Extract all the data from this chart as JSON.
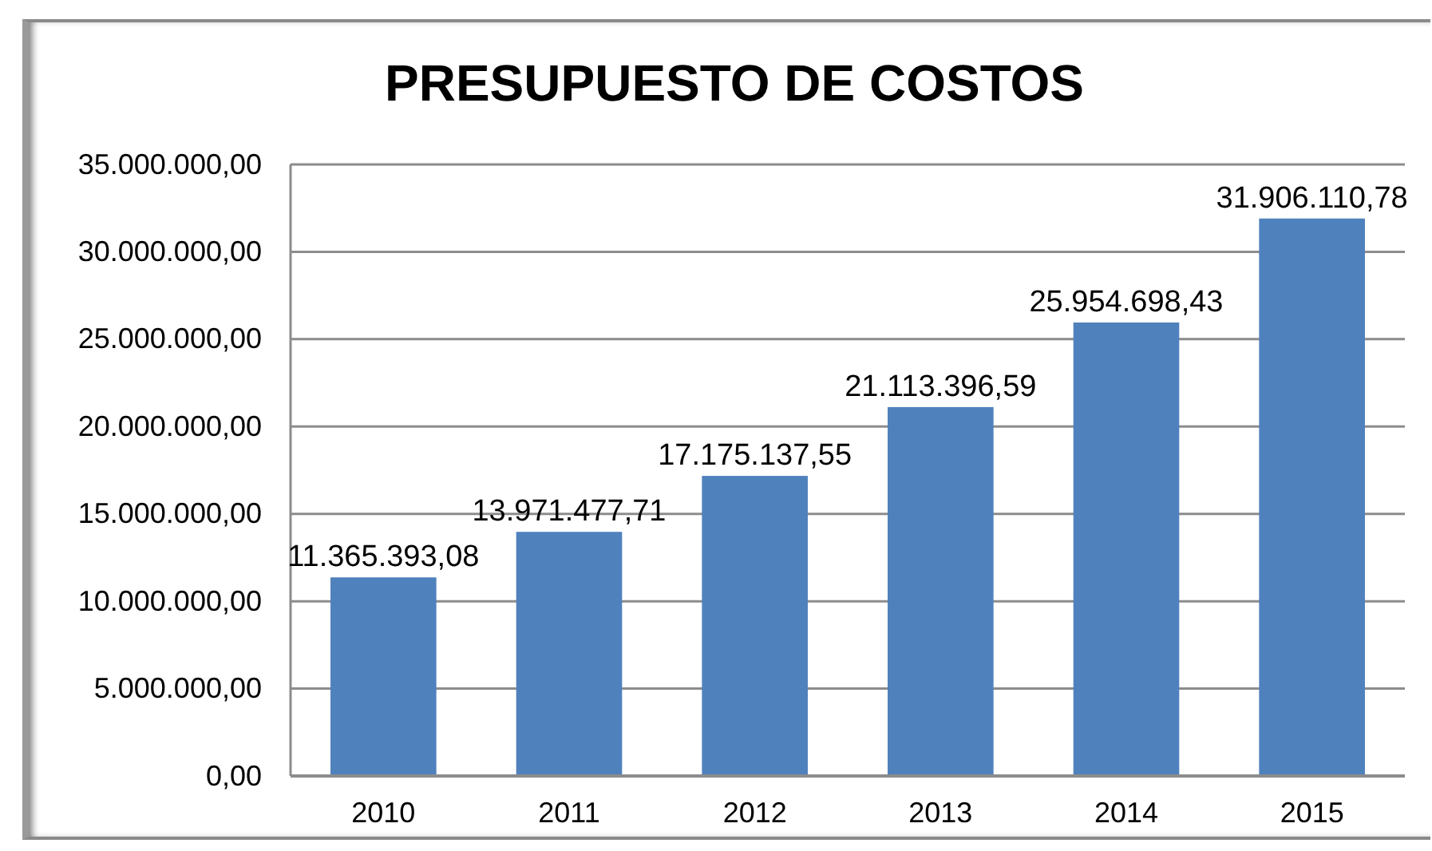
{
  "chart_data": {
    "type": "bar",
    "title": "PRESUPUESTO DE COSTOS",
    "categories": [
      "2010",
      "2011",
      "2012",
      "2013",
      "2014",
      "2015"
    ],
    "values": [
      11365393.08,
      13971477.71,
      17175137.55,
      21113396.59,
      25954698.43,
      31906110.78
    ],
    "value_labels": [
      "11.365.393,08",
      "13.971.477,71",
      "17.175.137,55",
      "21.113.396,59",
      "25.954.698,43",
      "31.906.110,78"
    ],
    "color": "#4f81bd",
    "ylim": [
      0,
      35000000
    ],
    "yticks": [
      {
        "value": 0,
        "label": "0,00"
      },
      {
        "value": 5000000,
        "label": "5.000.000,00"
      },
      {
        "value": 10000000,
        "label": "10.000.000,00"
      },
      {
        "value": 15000000,
        "label": "15.000.000,00"
      },
      {
        "value": 20000000,
        "label": "20.000.000,00"
      },
      {
        "value": 25000000,
        "label": "25.000.000,00"
      },
      {
        "value": 30000000,
        "label": "30.000.000,00"
      },
      {
        "value": 35000000,
        "label": "35.000.000,00"
      }
    ],
    "grid": "y"
  }
}
